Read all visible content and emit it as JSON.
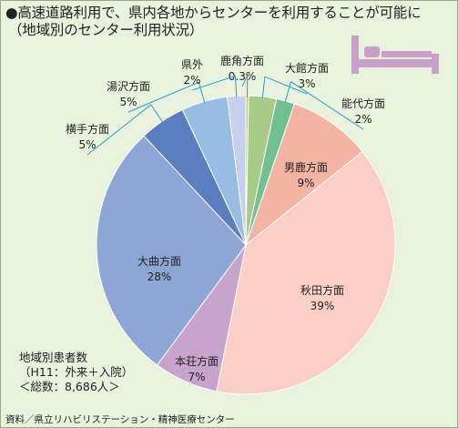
{
  "title_line1": "●高速道路利用で、県内各地からセンターを利用することが可能に",
  "title_line2": "（地域別のセンター利用状況）",
  "note": [
    "地域別患者数",
    "（H11：外来＋入院）",
    "＜総数：8,686人＞"
  ],
  "source": "資料／県立リハビリステーション・精神医療センター",
  "colors": {
    "background": "#e8f2dc",
    "bed_icon": "#c8a0c8"
  },
  "icon": "bed-icon",
  "chart_data": {
    "type": "pie",
    "start": "12 o'clock, clockwise",
    "slices": [
      {
        "label": "鹿角方面",
        "value": 0.3,
        "value_text": "0.3%",
        "color": "#b8d46c"
      },
      {
        "label": "大館方面",
        "value": 3,
        "value_text": "3%",
        "color": "#a8cc88"
      },
      {
        "label": "能代方面",
        "value": 2,
        "value_text": "2%",
        "color": "#70c090"
      },
      {
        "label": "男鹿方面",
        "value": 9,
        "value_text": "9%",
        "color": "#f4b4a4"
      },
      {
        "label": "秋田方面",
        "value": 39,
        "value_text": "39%",
        "color": "#fbcfc6"
      },
      {
        "label": "本荘方面",
        "value": 7,
        "value_text": "7%",
        "color": "#c8a4cc"
      },
      {
        "label": "大曲方面",
        "value": 28,
        "value_text": "28%",
        "color": "#8ea6d6"
      },
      {
        "label": "横手方面",
        "value": 5,
        "value_text": "5%",
        "color": "#5a7ec0"
      },
      {
        "label": "湯沢方面",
        "value": 5,
        "value_text": "5%",
        "color": "#98bce4"
      },
      {
        "label": "県外",
        "value": 2,
        "value_text": "2%",
        "color": "#c6d0ec"
      }
    ]
  }
}
